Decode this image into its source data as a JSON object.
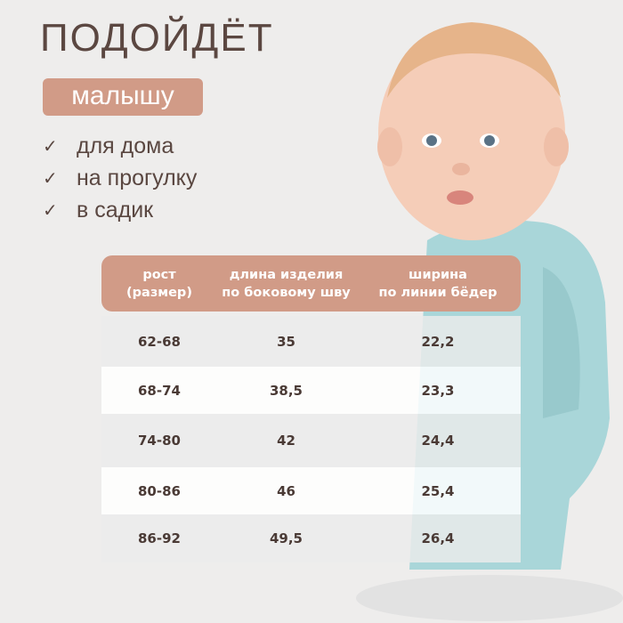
{
  "header": {
    "title": "ПОДОЙДЁТ",
    "badge": "малышу"
  },
  "uses": [
    {
      "icon": "check-icon",
      "label": "для дома"
    },
    {
      "icon": "check-icon",
      "label": "на прогулку"
    },
    {
      "icon": "check-icon",
      "label": "в садик"
    }
  ],
  "colors": {
    "accent": "#d19b87",
    "text": "#5a4741",
    "background": "#eeedec",
    "onesie": "#a9d6d9"
  },
  "size_table": {
    "headers": [
      {
        "line1": "рост",
        "line2": "(размер)"
      },
      {
        "line1": "длина изделия",
        "line2": "по боковому шву"
      },
      {
        "line1": "ширина",
        "line2": "по линии бёдер"
      }
    ],
    "rows": [
      [
        "62-68",
        "35",
        "22,2"
      ],
      [
        "68-74",
        "38,5",
        "23,3"
      ],
      [
        "74-80",
        "42",
        "24,4"
      ],
      [
        "80-86",
        "46",
        "25,4"
      ],
      [
        "86-92",
        "49,5",
        "26,4"
      ]
    ]
  }
}
